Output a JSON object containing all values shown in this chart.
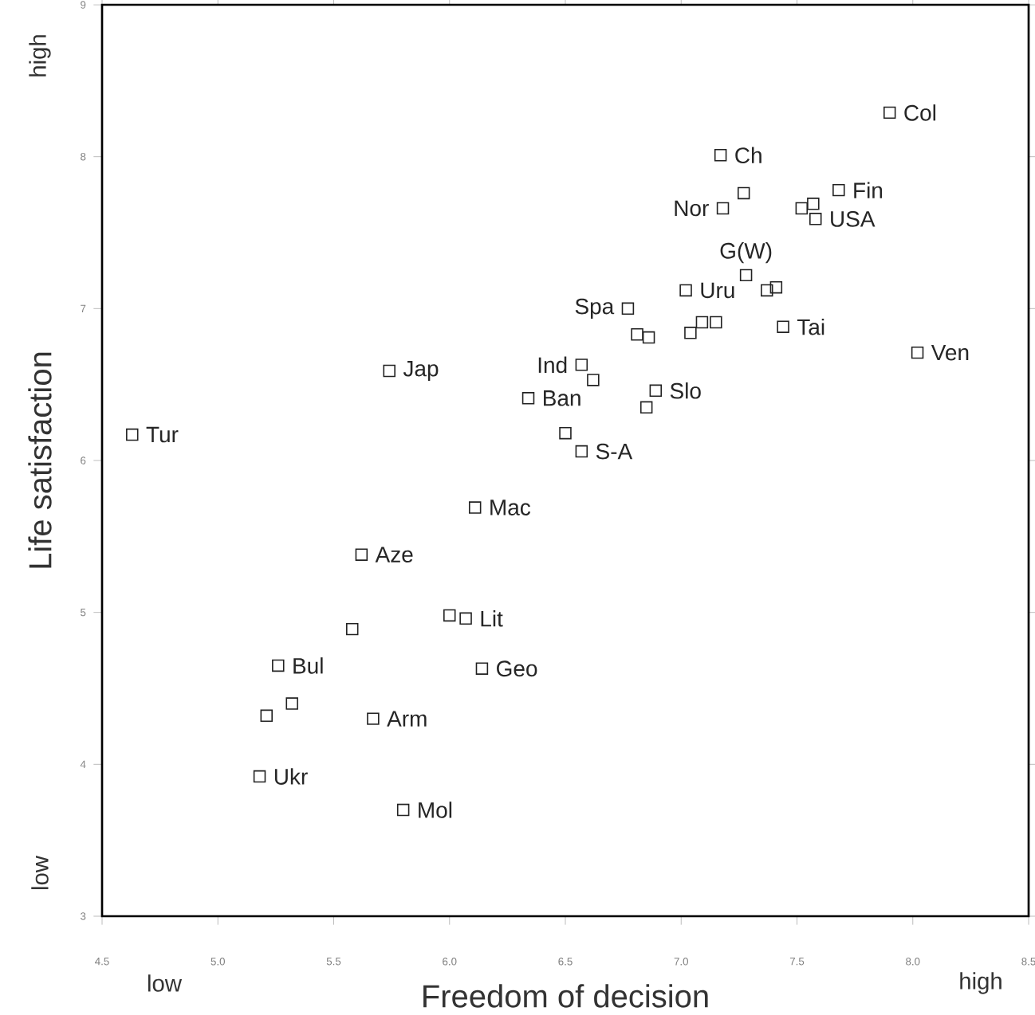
{
  "chart_data": {
    "type": "scatter",
    "xlabel": "Freedom of decision",
    "ylabel": "Life satisfaction",
    "xlim": [
      4.5,
      8.5
    ],
    "ylim": [
      3,
      9
    ],
    "xticks": [
      {
        "value": 4.5,
        "label": "4.5"
      },
      {
        "value": 5,
        "label": "5.0"
      },
      {
        "value": 5.5,
        "label": "5.5"
      },
      {
        "value": 6,
        "label": "6.0"
      },
      {
        "value": 6.5,
        "label": "6.5"
      },
      {
        "value": 7,
        "label": "7.0"
      },
      {
        "value": 7.5,
        "label": "7.5"
      },
      {
        "value": 8,
        "label": "8.0"
      },
      {
        "value": 8.5,
        "label": "8.5"
      }
    ],
    "yticks": [
      3,
      4,
      5,
      6,
      7,
      8,
      9
    ],
    "marker": "square",
    "grid": false,
    "series": [
      {
        "color": "#222222",
        "x": [
          4.63,
          5.74,
          6.34,
          6.5,
          7.9,
          7.17,
          7.18,
          7.27,
          7.68,
          7.52,
          7.57,
          7.58,
          7.28,
          7.37,
          7.41,
          7.02,
          6.77,
          6.81,
          6.86,
          7.04,
          7.09,
          7.15,
          7.44,
          8.02,
          6.57,
          6.62,
          6.89,
          6.85,
          6.57,
          6.11,
          5.62,
          5.58,
          6.0,
          6.07,
          6.14,
          5.26,
          5.32,
          5.21,
          5.67,
          5.18,
          5.8
        ],
        "values": [
          6.17,
          6.59,
          6.41,
          6.18,
          8.29,
          8.01,
          7.66,
          7.76,
          7.78,
          7.66,
          7.69,
          7.59,
          7.22,
          7.12,
          7.14,
          7.12,
          7.0,
          6.83,
          6.81,
          6.84,
          6.91,
          6.91,
          6.88,
          6.71,
          6.63,
          6.53,
          6.46,
          6.35,
          6.06,
          5.69,
          5.38,
          4.89,
          4.98,
          4.96,
          4.63,
          4.65,
          4.4,
          4.32,
          4.3,
          3.92,
          3.7
        ]
      }
    ],
    "annotations": [
      "low",
      "high",
      "low",
      "high",
      {
        "text": "Tur",
        "x": 4.63,
        "y": 6.17
      },
      {
        "text": "Jap",
        "x": 5.74,
        "y": 6.59
      },
      {
        "text": "Ban",
        "x": 6.34,
        "y": 6.41
      },
      {
        "text": "Col",
        "x": 7.9,
        "y": 8.29
      },
      {
        "text": "Ch",
        "x": 7.17,
        "y": 8.01
      },
      {
        "text": "Nor",
        "x": 7.18,
        "y": 7.66
      },
      {
        "text": "Fin",
        "x": 7.68,
        "y": 7.78
      },
      {
        "text": "USA",
        "x": 7.58,
        "y": 7.59
      },
      {
        "text": "G(W)",
        "x": 7.28,
        "y": 7.22
      },
      {
        "text": "Uru",
        "x": 7.02,
        "y": 7.12
      },
      {
        "text": "Spa",
        "x": 6.77,
        "y": 7.0
      },
      {
        "text": "Tai",
        "x": 7.44,
        "y": 6.88
      },
      {
        "text": "Ven",
        "x": 8.02,
        "y": 6.71
      },
      {
        "text": "Ind",
        "x": 6.57,
        "y": 6.63
      },
      {
        "text": "Slo",
        "x": 6.89,
        "y": 6.46
      },
      {
        "text": "S-A",
        "x": 6.57,
        "y": 6.06
      },
      {
        "text": "Mac",
        "x": 6.11,
        "y": 5.69
      },
      {
        "text": "Aze",
        "x": 5.62,
        "y": 5.38
      },
      {
        "text": "Lit",
        "x": 6.07,
        "y": 4.96
      },
      {
        "text": "Geo",
        "x": 6.14,
        "y": 4.63
      },
      {
        "text": "Bul",
        "x": 5.26,
        "y": 4.65
      },
      {
        "text": "Arm",
        "x": 5.67,
        "y": 4.3
      },
      {
        "text": "Ukr",
        "x": 5.18,
        "y": 3.92
      },
      {
        "text": "Mol",
        "x": 5.8,
        "y": 3.7
      }
    ]
  }
}
